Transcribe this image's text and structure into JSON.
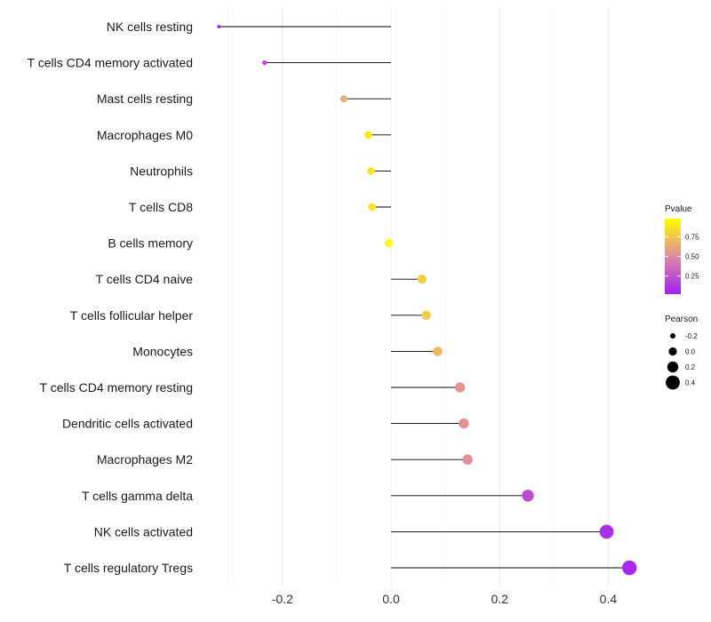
{
  "chart_data": {
    "type": "lollipop",
    "title": "",
    "xlabel": "",
    "ylabel": "",
    "xlim": [
      -0.3,
      0.45
    ],
    "x_ticks": [
      -0.2,
      0.0,
      0.2,
      0.4
    ],
    "x_tick_labels": [
      "-0.2",
      "0.0",
      "0.2",
      "0.4"
    ],
    "grid": true,
    "baseline": 0,
    "categories": [
      "NK cells resting",
      "T cells CD4 memory activated",
      "Mast cells resting",
      "Macrophages M0",
      "Neutrophils",
      "T cells CD8",
      "B cells memory",
      "T cells CD4 naive",
      "T cells follicular helper",
      "Monocytes",
      "T cells CD4 memory resting",
      "Dendritic cells activated",
      "Macrophages M2",
      "T cells gamma delta",
      "NK cells activated",
      "T cells regulatory  Tregs"
    ],
    "pearson": [
      -0.317,
      -0.233,
      -0.087,
      -0.042,
      -0.037,
      -0.035,
      -0.004,
      0.057,
      0.065,
      0.086,
      0.127,
      0.134,
      0.141,
      0.252,
      0.397,
      0.439
    ],
    "pvalue": [
      0.05,
      0.22,
      0.65,
      0.9,
      0.88,
      0.88,
      0.97,
      0.8,
      0.78,
      0.7,
      0.55,
      0.53,
      0.52,
      0.2,
      0.08,
      0.05
    ],
    "color_legend": {
      "title": "Pvalue",
      "low_color": "#a020f0",
      "mid_color": "#e08aa0",
      "high_color": "#ffff00",
      "range": [
        0.02,
        0.98
      ],
      "ticks": [
        0.25,
        0.5,
        0.75
      ],
      "tick_labels": [
        "0.25",
        "0.50",
        "0.75"
      ]
    },
    "size_legend": {
      "title": "Pearson",
      "values": [
        -0.2,
        0.0,
        0.2,
        0.4
      ],
      "labels": [
        "-0.2",
        "0.0",
        "0.2",
        "0.4"
      ]
    },
    "stem_color": "#000000"
  }
}
